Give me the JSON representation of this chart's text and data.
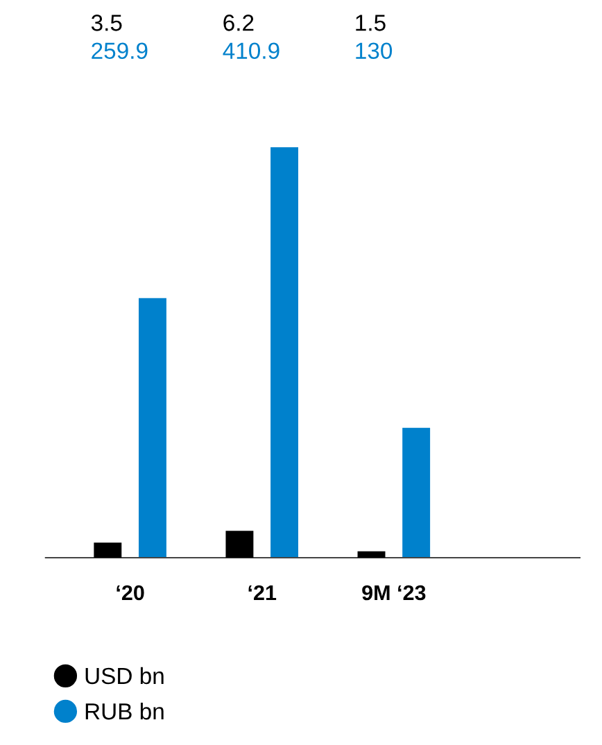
{
  "chart_data": {
    "type": "bar",
    "categories": [
      "‘20",
      "‘21",
      "9M ‘23"
    ],
    "series": [
      {
        "name": "USD bn",
        "color": "#000000",
        "values": [
          3.5,
          6.2,
          1.5
        ],
        "axis": "y2"
      },
      {
        "name": "RUB bn",
        "color": "#0081cc",
        "values": [
          259.9,
          410.9,
          130
        ]
      }
    ],
    "data_labels": true,
    "tick_labels": "x",
    "legend": "bottom",
    "marker": "circle",
    "grid": false
  }
}
